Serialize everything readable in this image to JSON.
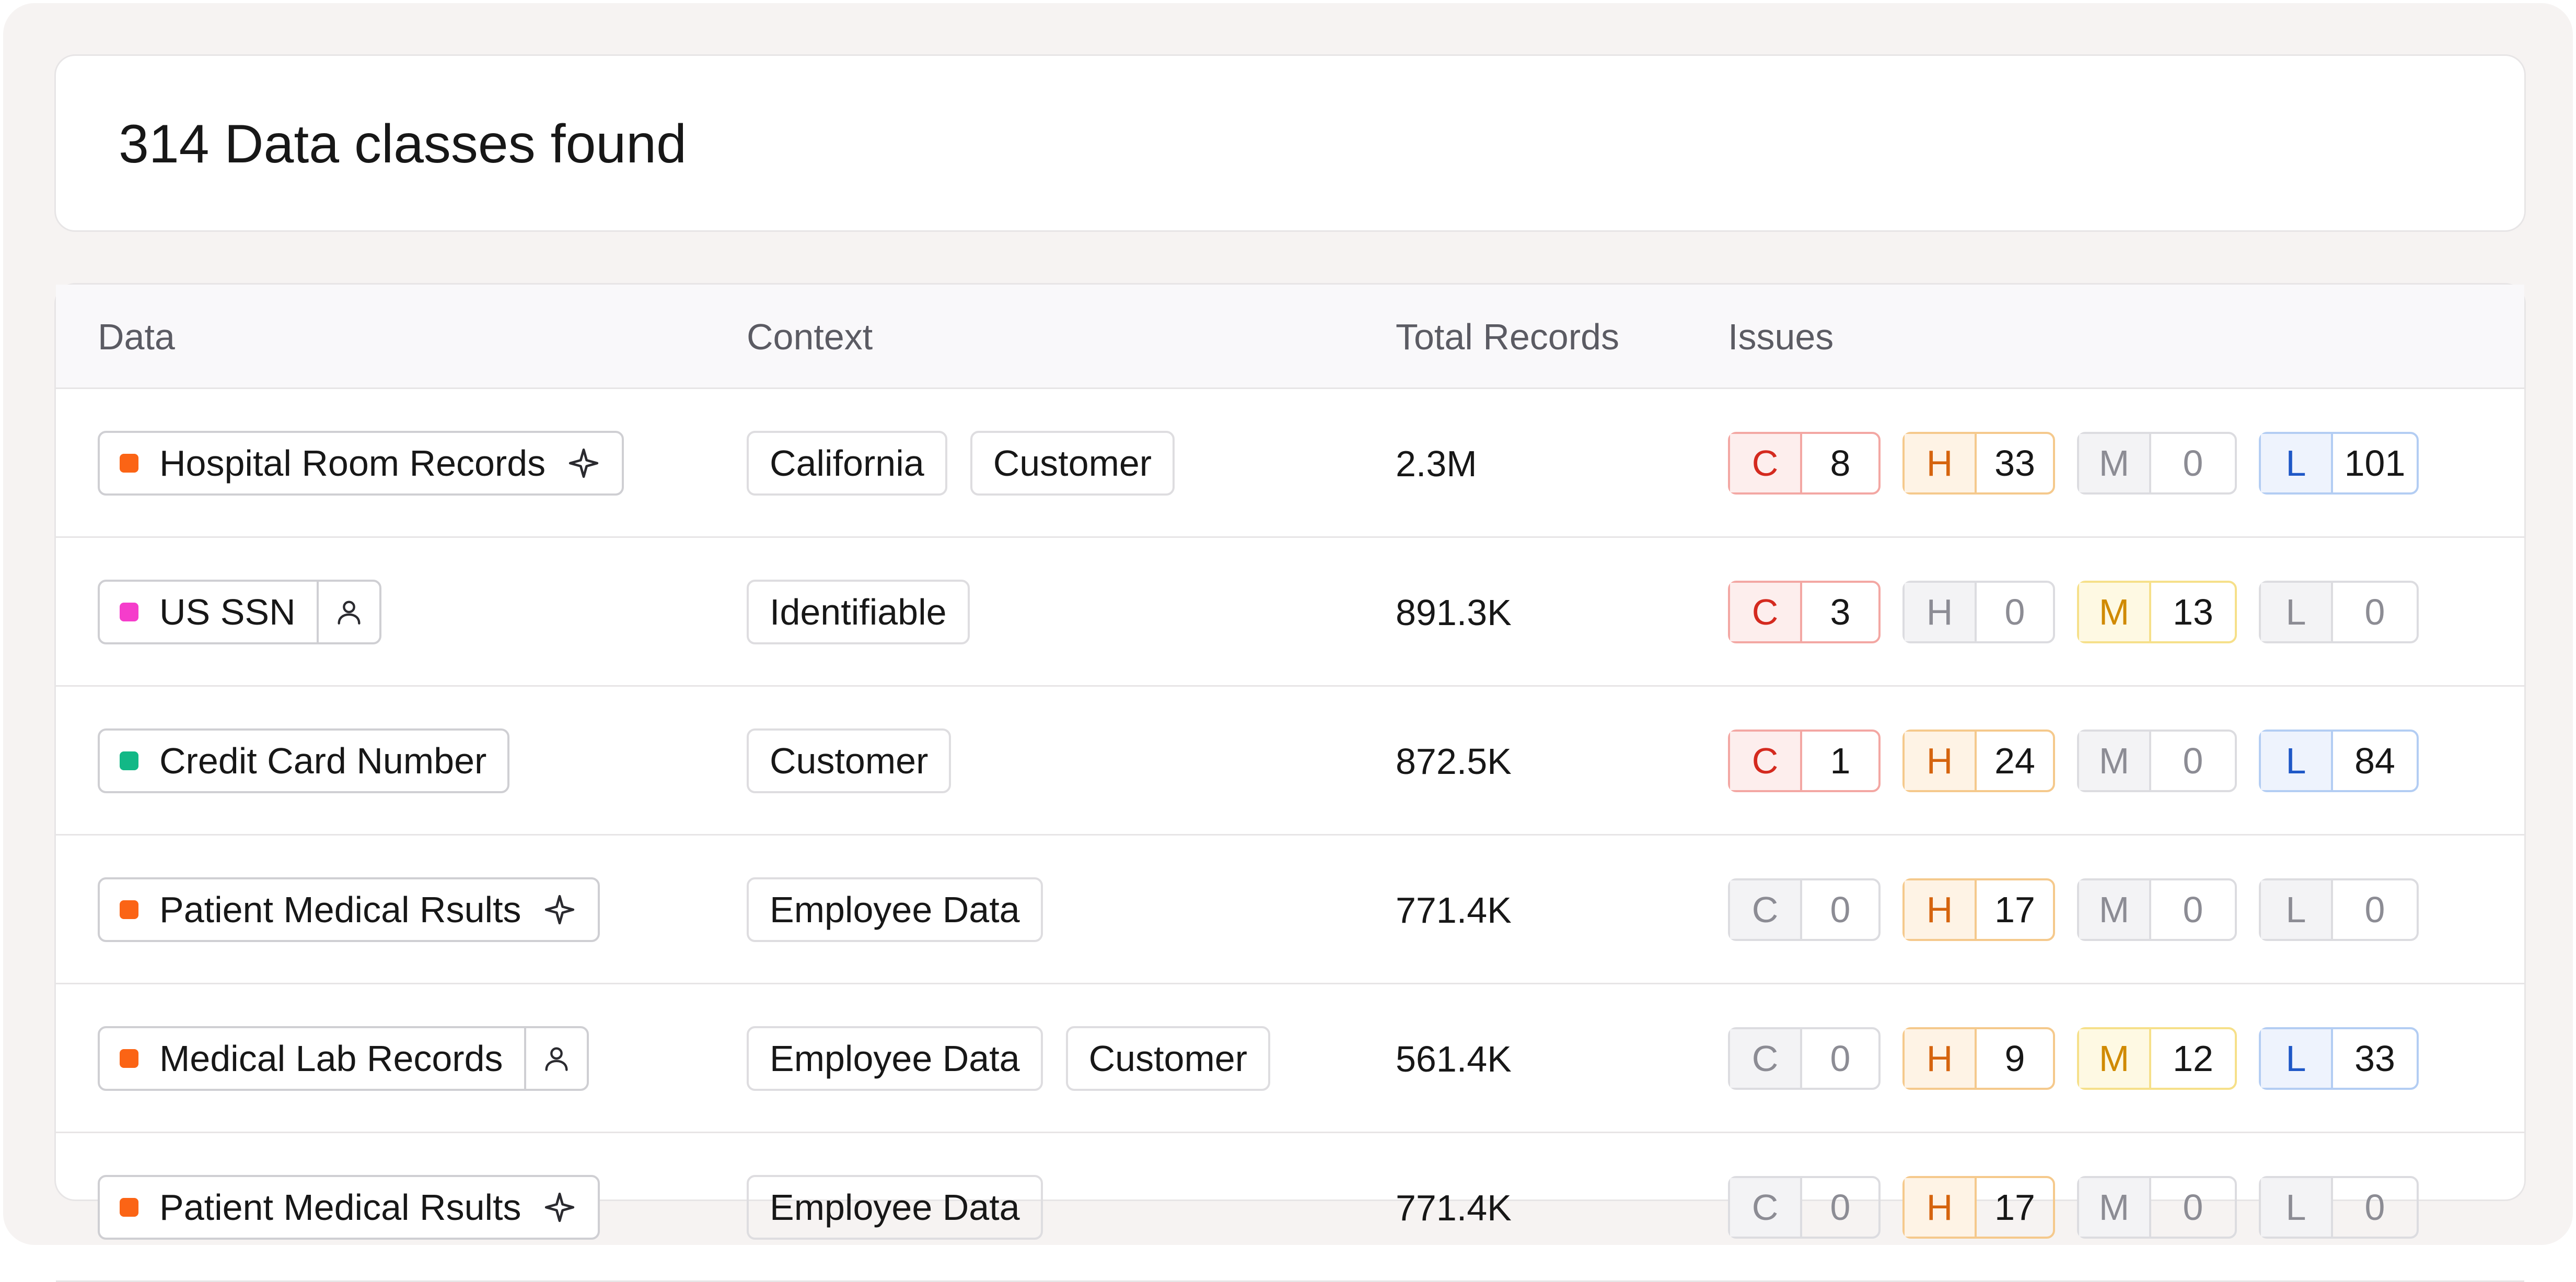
{
  "header": {
    "title": "314 Data classes found"
  },
  "table": {
    "columns": [
      "Data",
      "Context",
      "Total Records",
      "Issues"
    ],
    "rows": [
      {
        "name": "Hospital Room Records",
        "dot_color": "#fb6415",
        "extra": "sparkle-icon",
        "tags": [
          "California",
          "Customer"
        ],
        "records": "2.3M",
        "issues": {
          "C": "8",
          "H": "33",
          "M": "0",
          "L": "101"
        }
      },
      {
        "name": "US SSN",
        "dot_color": "#f53dcb",
        "extra": "person-icon",
        "tags": [
          "Identifiable"
        ],
        "records": "891.3K",
        "issues": {
          "C": "3",
          "H": "0",
          "M": "13",
          "L": "0"
        }
      },
      {
        "name": "Credit Card Number",
        "dot_color": "#12b886",
        "extra": "",
        "tags": [
          "Customer"
        ],
        "records": "872.5K",
        "issues": {
          "C": "1",
          "H": "24",
          "M": "0",
          "L": "84"
        }
      },
      {
        "name": "Patient Medical Rsults",
        "dot_color": "#fb6415",
        "extra": "sparkle-icon",
        "tags": [
          "Employee Data"
        ],
        "records": "771.4K",
        "issues": {
          "C": "0",
          "H": "17",
          "M": "0",
          "L": "0"
        }
      },
      {
        "name": "Medical Lab Records",
        "dot_color": "#fb6415",
        "extra": "person-icon",
        "tags": [
          "Employee Data",
          "Customer"
        ],
        "records": "561.4K",
        "issues": {
          "C": "0",
          "H": "9",
          "M": "12",
          "L": "33"
        }
      },
      {
        "name": "Patient Medical Rsults",
        "dot_color": "#fb6415",
        "extra": "sparkle-icon",
        "tags": [
          "Employee Data"
        ],
        "records": "771.4K",
        "issues": {
          "C": "0",
          "H": "17",
          "M": "0",
          "L": "0"
        }
      }
    ]
  },
  "issue_letters": {
    "C": "C",
    "H": "H",
    "M": "M",
    "L": "L"
  }
}
